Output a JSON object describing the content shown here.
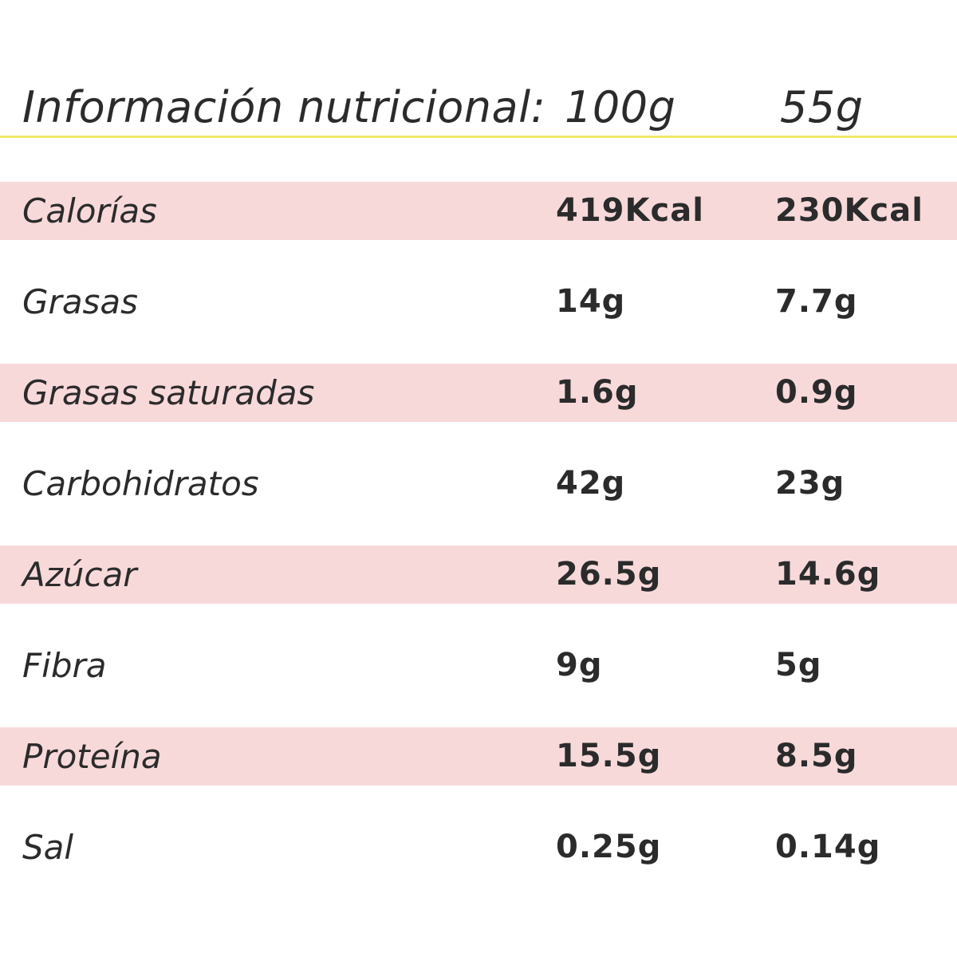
{
  "header": {
    "title": "Información nutricional:",
    "col_a": "100g",
    "col_b": "55g"
  },
  "colors": {
    "rule": "#f1e96a",
    "band": "#f8d9da",
    "text": "#2b2b2b"
  },
  "rows": [
    {
      "label": "Calorías",
      "per_100g": "419Kcal",
      "per_55g": "230Kcal",
      "shaded": true
    },
    {
      "label": "Grasas",
      "per_100g": "14g",
      "per_55g": "7.7g",
      "shaded": false
    },
    {
      "label": "Grasas saturadas",
      "per_100g": "1.6g",
      "per_55g": "0.9g",
      "shaded": true
    },
    {
      "label": "Carbohidratos",
      "per_100g": "42g",
      "per_55g": "23g",
      "shaded": false
    },
    {
      "label": "Azúcar",
      "per_100g": "26.5g",
      "per_55g": "14.6g",
      "shaded": true
    },
    {
      "label": "Fibra",
      "per_100g": "9g",
      "per_55g": "5g",
      "shaded": false
    },
    {
      "label": "Proteína",
      "per_100g": "15.5g",
      "per_55g": "8.5g",
      "shaded": true
    },
    {
      "label": "Sal",
      "per_100g": "0.25g",
      "per_55g": "0.14g",
      "shaded": false
    }
  ]
}
